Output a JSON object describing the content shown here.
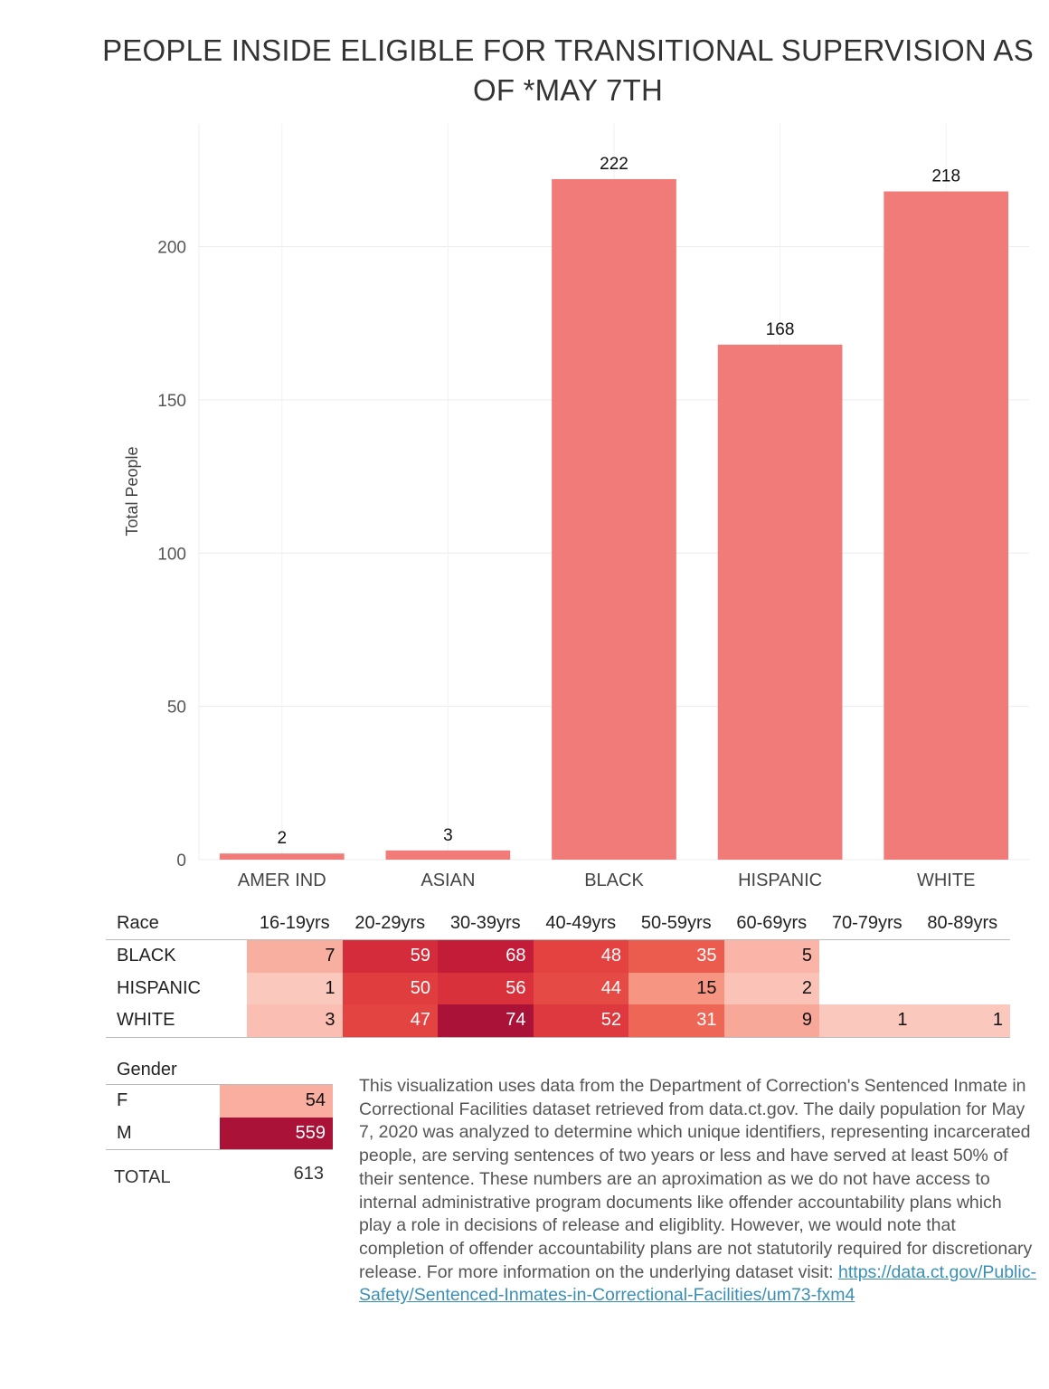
{
  "chart_data": [
    {
      "type": "bar",
      "title": "PEOPLE INSIDE ELIGIBLE FOR TRANSITIONAL SUPERVISION AS OF *MAY 7TH",
      "xlabel": "",
      "ylabel": "Total People",
      "categories": [
        "AMER IND",
        "ASIAN",
        "BLACK",
        "HISPANIC",
        "WHITE"
      ],
      "values": [
        2,
        3,
        222,
        168,
        218
      ],
      "ylim": [
        0,
        240
      ],
      "yticks": [
        0,
        50,
        100,
        150,
        200
      ],
      "bar_color": "#f07b78",
      "grid": true
    },
    {
      "type": "heatmap",
      "row_header": "Race",
      "columns": [
        "16-19yrs",
        "20-29yrs",
        "30-39yrs",
        "40-49yrs",
        "50-59yrs",
        "60-69yrs",
        "70-79yrs",
        "80-89yrs"
      ],
      "rows": [
        {
          "label": "BLACK",
          "values": [
            7,
            59,
            68,
            48,
            35,
            5,
            null,
            null
          ]
        },
        {
          "label": "HISPANIC",
          "values": [
            1,
            50,
            56,
            44,
            15,
            2,
            null,
            null
          ]
        },
        {
          "label": "WHITE",
          "values": [
            3,
            47,
            74,
            52,
            31,
            9,
            1,
            1
          ]
        }
      ]
    },
    {
      "type": "heatmap",
      "row_header": "Gender",
      "rows": [
        {
          "label": "F",
          "value": 54
        },
        {
          "label": "M",
          "value": 559
        }
      ],
      "total_label": "TOTAL",
      "total_value": 613
    }
  ],
  "note": {
    "text": "This visualization uses data from the Department of Correction's Sentenced Inmate in Correctional Facilities dataset retrieved from data.ct.gov. The daily population for May 7, 2020 was analyzed to determine which unique identifiers, representing incarcerated people, are serving sentences of two years or less and have served at least 50% of their sentence. These numbers are an aproximation as we do not have access to internal administrative program documents like offender accountability plans which play a role in decisions of release and eligiblity. However, we would note that completion of offender accountability plans are not statutorily required for discretionary release. For more information on the underlying dataset visit: ",
    "link_text": "https://data.ct.gov/Public-Safety/Sentenced-Inmates-in-Correctional-Facilities/um73-fxm4"
  }
}
